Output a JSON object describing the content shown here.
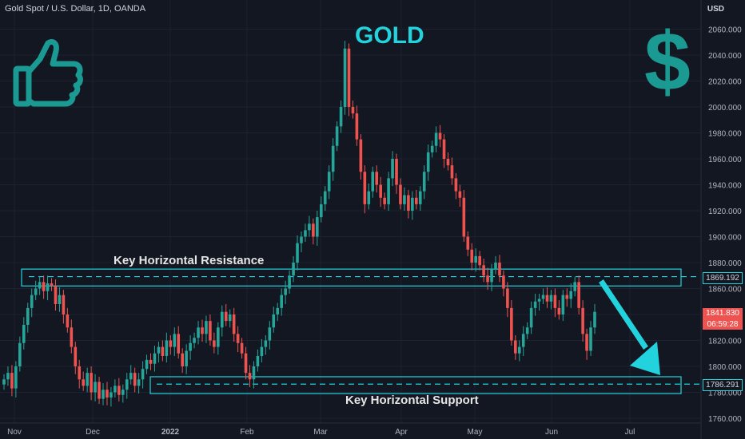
{
  "header": {
    "symbol": "Gold Spot / U.S. Dollar, 1D, OANDA",
    "currency": "USD"
  },
  "title": "GOLD",
  "annotations": {
    "resistance_label": "Key Horizontal Resistance",
    "support_label": "Key Horizontal Support",
    "thumbs_up": "thumbs-up-icon",
    "dollar_sign": "$"
  },
  "price_tags": {
    "resistance_value": "1869.192",
    "support_value": "1786.291",
    "last_price": "1841.830",
    "countdown": "06:59:28"
  },
  "colors": {
    "up": "#26a69a",
    "down": "#ef5350",
    "zone": "#22d3de",
    "background": "#131722"
  },
  "chart_data": {
    "type": "candlestick",
    "title": "GOLD",
    "ylabel": "USD",
    "ylim": [
      1760,
      2070
    ],
    "y_ticks": [
      "1760.000",
      "1780.000",
      "1800.000",
      "1820.000",
      "1840.000",
      "1860.000",
      "1880.000",
      "1900.000",
      "1920.000",
      "1940.000",
      "1960.000",
      "1980.000",
      "2000.000",
      "2020.000",
      "2040.000",
      "2060.000"
    ],
    "x_labels": [
      "Nov",
      "Dec",
      "2022",
      "Feb",
      "Mar",
      "Apr",
      "May",
      "Jun",
      "Jul"
    ],
    "zones": [
      {
        "name": "Key Horizontal Resistance",
        "low": 1862,
        "high": 1875,
        "line": 1869.192
      },
      {
        "name": "Key Horizontal Support",
        "low": 1779,
        "high": 1792,
        "line": 1786.291
      }
    ],
    "close_prices": [
      1790,
      1795,
      1783,
      1800,
      1818,
      1832,
      1845,
      1855,
      1860,
      1865,
      1858,
      1864,
      1862,
      1848,
      1855,
      1840,
      1830,
      1815,
      1800,
      1790,
      1785,
      1795,
      1780,
      1788,
      1775,
      1782,
      1776,
      1780,
      1785,
      1778,
      1782,
      1790,
      1795,
      1785,
      1790,
      1798,
      1805,
      1802,
      1810,
      1815,
      1808,
      1820,
      1815,
      1825,
      1810,
      1800,
      1812,
      1818,
      1822,
      1830,
      1825,
      1835,
      1820,
      1815,
      1830,
      1842,
      1835,
      1840,
      1825,
      1818,
      1810,
      1795,
      1790,
      1800,
      1808,
      1815,
      1820,
      1830,
      1840,
      1845,
      1855,
      1860,
      1870,
      1880,
      1895,
      1900,
      1905,
      1910,
      1900,
      1915,
      1925,
      1935,
      1950,
      1970,
      1985,
      2000,
      2045,
      2000,
      1995,
      1975,
      1950,
      1925,
      1935,
      1950,
      1940,
      1930,
      1925,
      1945,
      1960,
      1940,
      1925,
      1932,
      1920,
      1930,
      1925,
      1935,
      1950,
      1965,
      1970,
      1980,
      1975,
      1960,
      1955,
      1945,
      1935,
      1930,
      1900,
      1890,
      1880,
      1885,
      1878,
      1870,
      1865,
      1875,
      1880,
      1870,
      1860,
      1845,
      1820,
      1810,
      1815,
      1825,
      1830,
      1845,
      1850,
      1852,
      1855,
      1850,
      1855,
      1845,
      1840,
      1855,
      1852,
      1858,
      1865,
      1845,
      1825,
      1812,
      1830,
      1842
    ],
    "last_price": 1841.83
  }
}
